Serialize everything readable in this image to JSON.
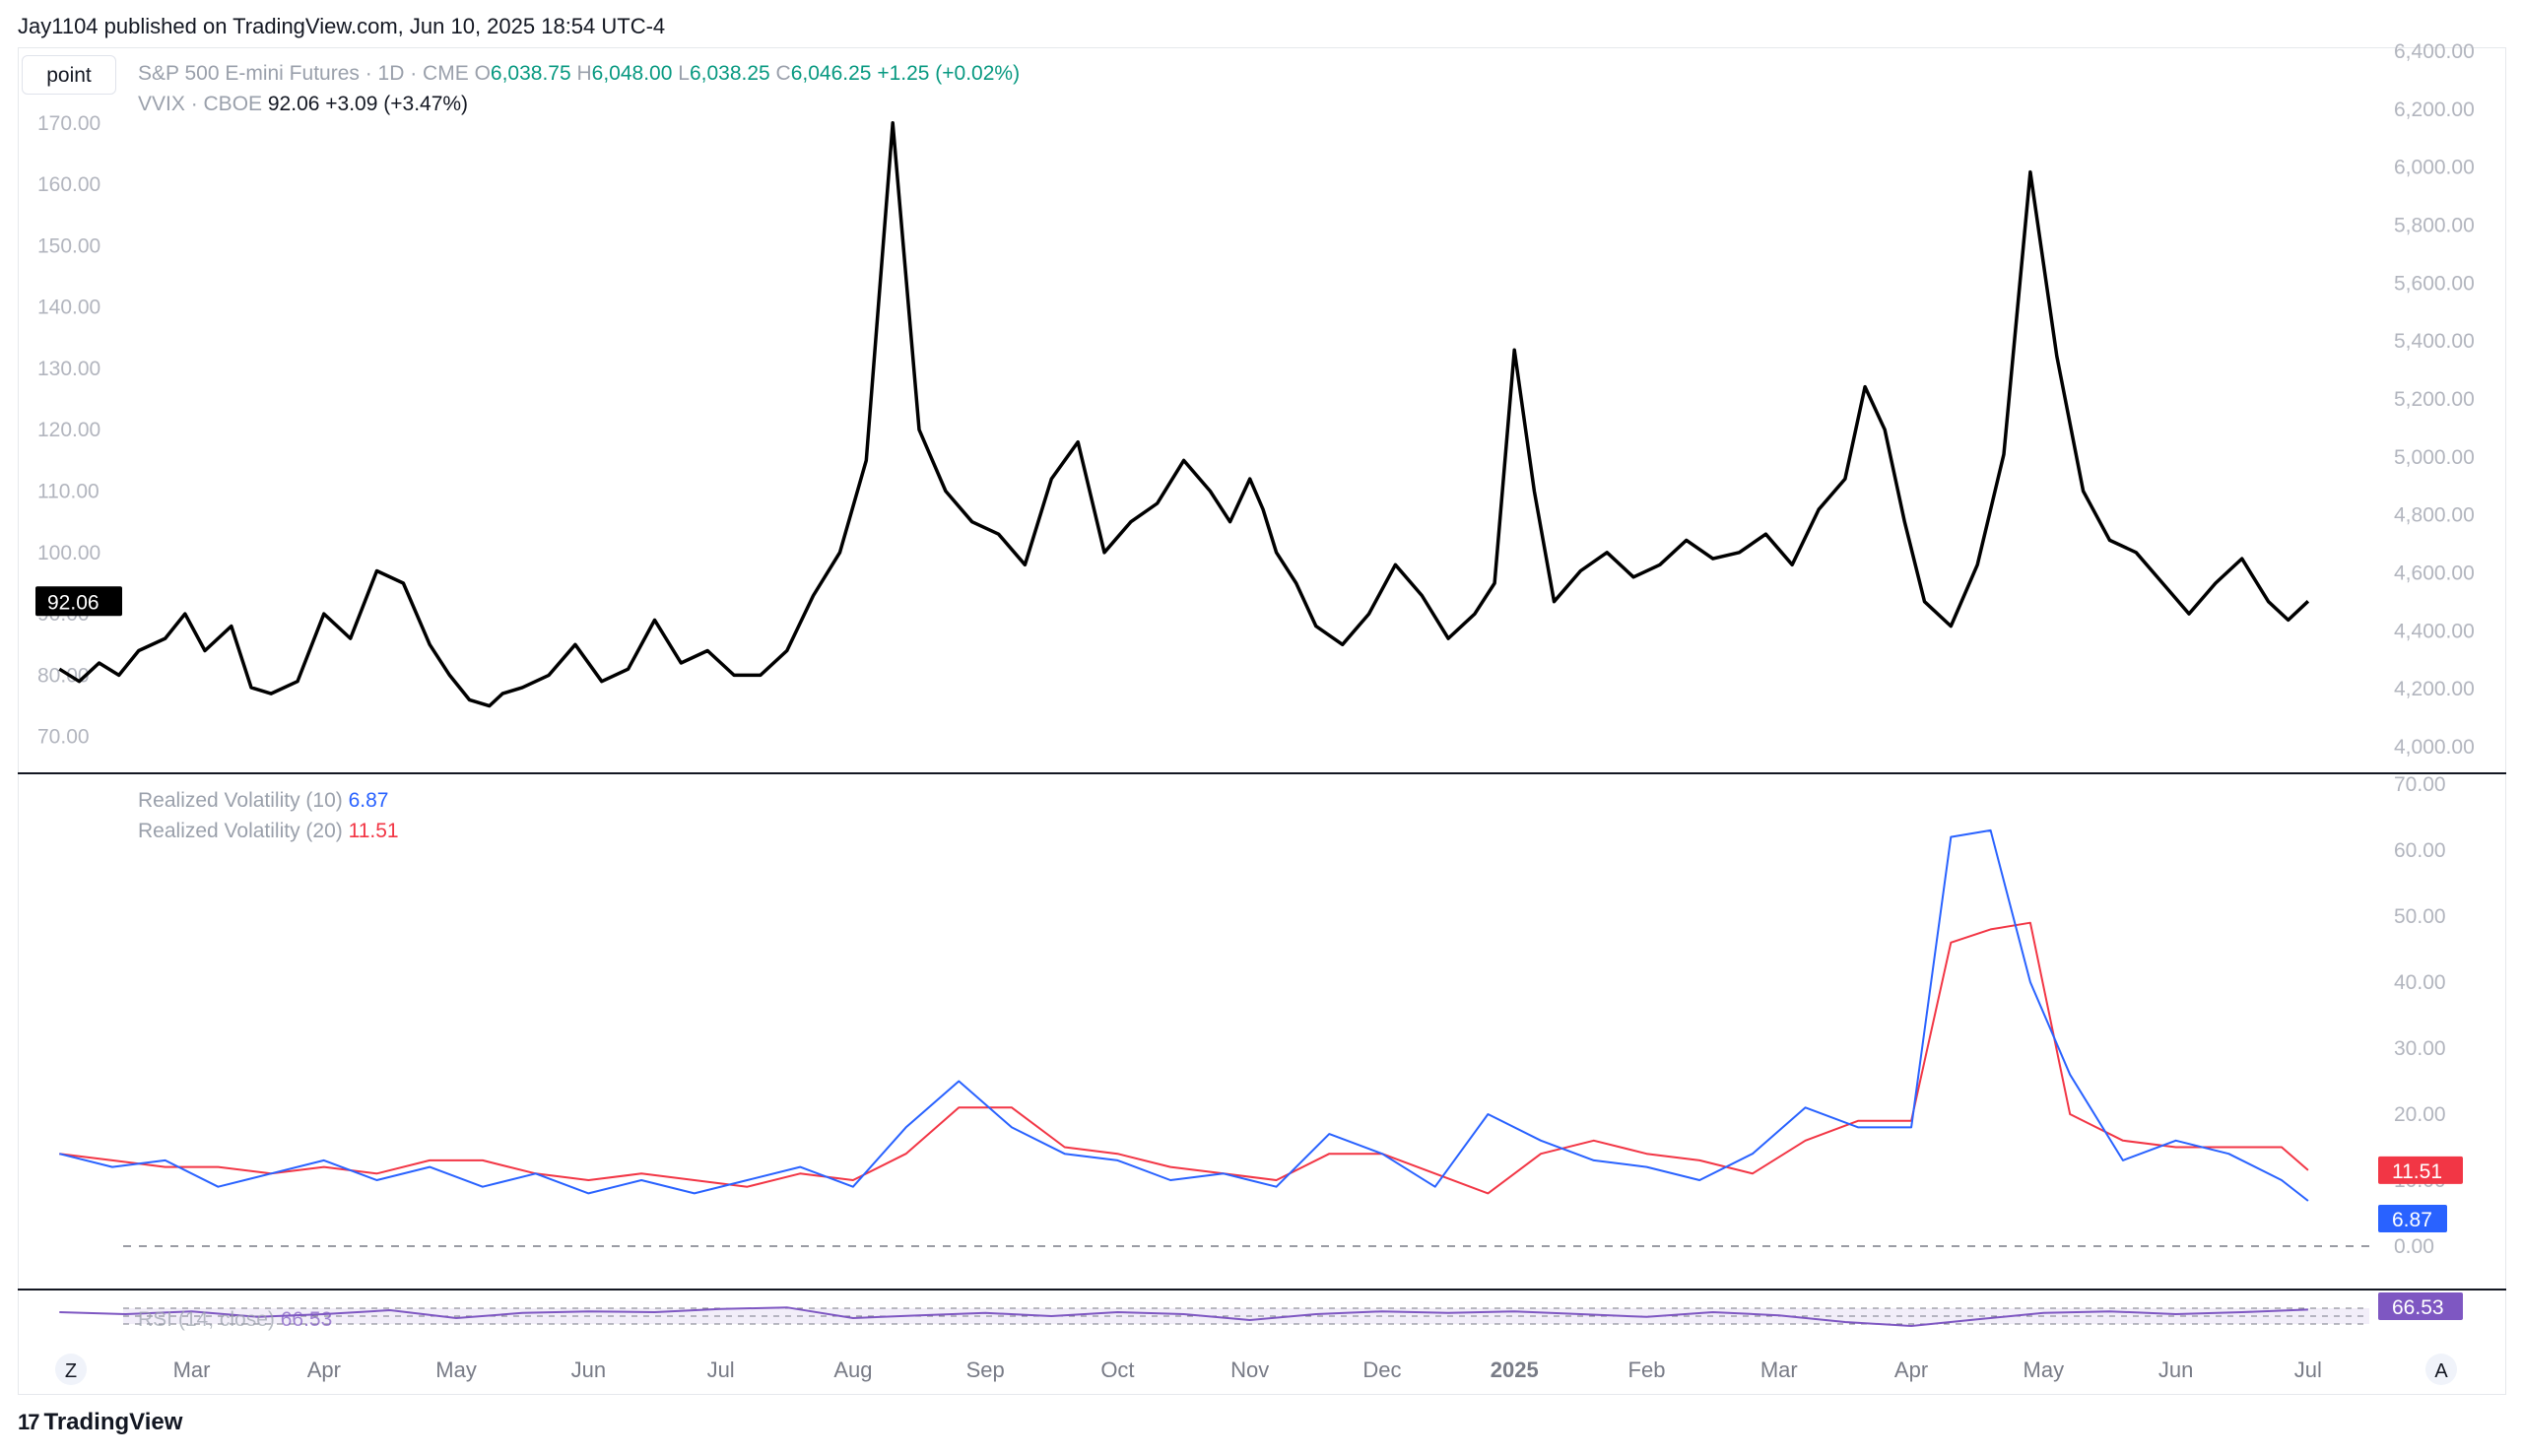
{
  "header": {
    "publisher": "Jay1104 published on TradingView.com, Jun 10, 2025 18:54 UTC-4"
  },
  "toolbar": {
    "point_label": "point"
  },
  "legend": {
    "main_symbol": "S&P 500 E-mini Futures · 1D · CME",
    "o_label": "O",
    "o_value": "6,038.75",
    "h_label": "H",
    "h_value": "6,048.00",
    "l_label": "L",
    "l_value": "6,038.25",
    "c_label": "C",
    "c_value": "6,046.25",
    "change": "+1.25 (+0.02%)",
    "overlay_symbol": "VVIX · CBOE",
    "overlay_value": "92.06",
    "overlay_change": "+3.09 (+3.47%)",
    "rv10_label": "Realized Volatility (10)",
    "rv10_value": "6.87",
    "rv20_label": "Realized Volatility (20)",
    "rv20_value": "11.51",
    "rsi_label": "RSI (14, close)",
    "rsi_value": "66.53"
  },
  "footer": {
    "brand": "TradingView",
    "z_label": "Z",
    "a_label": "A"
  },
  "colors": {
    "vvix_line": "#000000",
    "rv10_line": "#2962ff",
    "rv20_line": "#f23645",
    "rsi_line": "#7e57c2",
    "green": "#089981"
  },
  "chart_data": [
    {
      "type": "line",
      "title": "VVIX · CBOE",
      "left_axis_ticks": [
        "170.00",
        "160.00",
        "150.00",
        "140.00",
        "130.00",
        "120.00",
        "110.00",
        "100.00",
        "90.00",
        "80.00",
        "70.00"
      ],
      "right_axis_ticks": [
        "6,400.00",
        "6,200.00",
        "6,000.00",
        "5,800.00",
        "5,600.00",
        "5,400.00",
        "5,200.00",
        "5,000.00",
        "4,800.00",
        "4,600.00",
        "4,400.00",
        "4,200.00",
        "4,000.00"
      ],
      "ylim": [
        64.5,
        182
      ],
      "last_value_label": "92.06",
      "x_labels": [
        "Mar",
        "Apr",
        "May",
        "Jun",
        "Jul",
        "Aug",
        "Sep",
        "Oct",
        "Nov",
        "Dec",
        "2025",
        "Feb",
        "Mar",
        "Apr",
        "May",
        "Jun",
        "Jul"
      ],
      "x_range_months": [
        -1.3,
        16.5
      ],
      "series": [
        {
          "name": "VVIX",
          "x": [
            -1.0,
            -0.85,
            -0.7,
            -0.55,
            -0.4,
            -0.2,
            -0.05,
            0.1,
            0.3,
            0.45,
            0.6,
            0.8,
            1.0,
            1.2,
            1.4,
            1.6,
            1.8,
            1.95,
            2.1,
            2.25,
            2.35,
            2.5,
            2.7,
            2.9,
            3.1,
            3.3,
            3.5,
            3.7,
            3.9,
            4.1,
            4.3,
            4.5,
            4.7,
            4.9,
            5.1,
            5.3,
            5.5,
            5.7,
            5.9,
            6.1,
            6.3,
            6.5,
            6.7,
            6.9,
            7.1,
            7.3,
            7.5,
            7.7,
            7.85,
            8.0,
            8.1,
            8.2,
            8.35,
            8.5,
            8.7,
            8.9,
            9.1,
            9.3,
            9.5,
            9.7,
            9.85,
            10.0,
            10.15,
            10.3,
            10.5,
            10.7,
            10.9,
            11.1,
            11.3,
            11.5,
            11.7,
            11.9,
            12.1,
            12.3,
            12.5,
            12.65,
            12.8,
            12.95,
            13.1,
            13.3,
            13.5,
            13.7,
            13.9,
            14.1,
            14.3,
            14.5,
            14.7,
            14.9,
            15.1,
            15.3,
            15.5,
            15.7,
            15.85,
            16.0
          ],
          "values": [
            81,
            79,
            82,
            80,
            84,
            86,
            90,
            84,
            88,
            78,
            77,
            79,
            90,
            86,
            97,
            95,
            85,
            80,
            76,
            75,
            77,
            78,
            80,
            85,
            79,
            81,
            89,
            82,
            84,
            80,
            80,
            84,
            93,
            100,
            115,
            170,
            120,
            110,
            105,
            103,
            98,
            112,
            118,
            100,
            105,
            108,
            115,
            110,
            105,
            112,
            107,
            100,
            95,
            88,
            85,
            90,
            98,
            93,
            86,
            90,
            95,
            133,
            110,
            92,
            97,
            100,
            96,
            98,
            102,
            99,
            100,
            103,
            98,
            107,
            112,
            127,
            120,
            105,
            92,
            88,
            98,
            116,
            162,
            132,
            110,
            102,
            100,
            95,
            90,
            95,
            99,
            92,
            89,
            92.06
          ]
        }
      ]
    },
    {
      "type": "line",
      "title": "Realized Volatility",
      "right_axis_ticks": [
        "70.00",
        "60.00",
        "50.00",
        "40.00",
        "30.00",
        "20.00",
        "10.00",
        "0.00"
      ],
      "ylim": [
        0,
        70
      ],
      "series": [
        {
          "name": "Realized Volatility (10)",
          "x": [
            -1.0,
            -0.6,
            -0.2,
            0.2,
            0.6,
            1.0,
            1.4,
            1.8,
            2.2,
            2.6,
            3.0,
            3.4,
            3.8,
            4.2,
            4.6,
            5.0,
            5.4,
            5.8,
            6.2,
            6.6,
            7.0,
            7.4,
            7.8,
            8.2,
            8.6,
            9.0,
            9.4,
            9.8,
            10.2,
            10.6,
            11.0,
            11.4,
            11.8,
            12.2,
            12.6,
            13.0,
            13.3,
            13.6,
            13.9,
            14.2,
            14.6,
            15.0,
            15.4,
            15.8,
            16.0
          ],
          "values": [
            14,
            12,
            13,
            9,
            11,
            13,
            10,
            12,
            9,
            11,
            8,
            10,
            8,
            10,
            12,
            9,
            18,
            25,
            18,
            14,
            13,
            10,
            11,
            9,
            17,
            14,
            9,
            20,
            16,
            13,
            12,
            10,
            14,
            21,
            18,
            18,
            62,
            63,
            40,
            26,
            13,
            16,
            14,
            10,
            6.87
          ]
        },
        {
          "name": "Realized Volatility (20)",
          "x": [
            -1.0,
            -0.6,
            -0.2,
            0.2,
            0.6,
            1.0,
            1.4,
            1.8,
            2.2,
            2.6,
            3.0,
            3.4,
            3.8,
            4.2,
            4.6,
            5.0,
            5.4,
            5.8,
            6.2,
            6.6,
            7.0,
            7.4,
            7.8,
            8.2,
            8.6,
            9.0,
            9.4,
            9.8,
            10.2,
            10.6,
            11.0,
            11.4,
            11.8,
            12.2,
            12.6,
            13.0,
            13.3,
            13.6,
            13.9,
            14.2,
            14.6,
            15.0,
            15.4,
            15.8,
            16.0
          ],
          "values": [
            14,
            13,
            12,
            12,
            11,
            12,
            11,
            13,
            13,
            11,
            10,
            11,
            10,
            9,
            11,
            10,
            14,
            21,
            21,
            15,
            14,
            12,
            11,
            10,
            14,
            14,
            11,
            8,
            14,
            16,
            14,
            13,
            11,
            16,
            19,
            19,
            46,
            48,
            49,
            20,
            16,
            15,
            15,
            15,
            11.51
          ]
        }
      ]
    },
    {
      "type": "line",
      "title": "RSI (14, close)",
      "ylim": [
        0,
        100
      ],
      "band": [
        30,
        70
      ],
      "last_value_label": "66.53",
      "series": [
        {
          "name": "RSI (14, close)",
          "x": [
            -1.0,
            -0.5,
            0.0,
            0.5,
            1.0,
            1.5,
            2.0,
            2.5,
            3.0,
            3.5,
            4.0,
            4.5,
            5.0,
            5.5,
            6.0,
            6.5,
            7.0,
            7.5,
            8.0,
            8.5,
            9.0,
            9.5,
            10.0,
            10.5,
            11.0,
            11.5,
            12.0,
            12.5,
            13.0,
            13.5,
            14.0,
            14.5,
            15.0,
            15.5,
            16.0
          ],
          "values": [
            60,
            55,
            62,
            48,
            55,
            65,
            45,
            58,
            62,
            60,
            68,
            72,
            45,
            52,
            58,
            50,
            60,
            55,
            40,
            55,
            62,
            58,
            62,
            55,
            48,
            60,
            52,
            35,
            25,
            42,
            58,
            62,
            55,
            60,
            66.53
          ]
        }
      ]
    }
  ]
}
